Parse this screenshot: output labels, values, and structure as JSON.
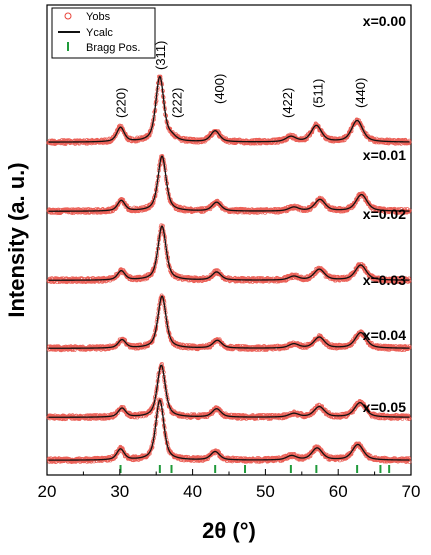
{
  "chart_data": {
    "type": "line",
    "xlabel": "2θ (°)",
    "ylabel": "Intensity (a. u.)",
    "xlim": [
      20,
      70
    ],
    "x_ticks": [
      20,
      30,
      40,
      50,
      60,
      70
    ],
    "y_ticks_shown": false,
    "grid": false,
    "legend": {
      "placement": "top-left",
      "entries": [
        {
          "name": "Yobs",
          "style": "open-circle",
          "color": "#e8443a"
        },
        {
          "name": "Ycalc",
          "style": "line",
          "color": "#111111"
        },
        {
          "name": "Bragg Pos.",
          "style": "tick",
          "color": "#1f9a3a"
        }
      ]
    },
    "peak_labels": [
      {
        "text": "(220)",
        "x": 30.1
      },
      {
        "text": "(311)",
        "x": 35.5
      },
      {
        "text": "(222)",
        "x": 37.1
      },
      {
        "text": "(400)",
        "x": 43.1
      },
      {
        "text": "(422)",
        "x": 53.5
      },
      {
        "text": "(511)",
        "x": 57.0
      },
      {
        "text": "(440)",
        "x": 62.6
      }
    ],
    "bragg_positions": [
      30.1,
      35.5,
      37.1,
      43.1,
      47.2,
      53.5,
      57.0,
      62.6,
      65.8,
      67.0
    ],
    "series": [
      {
        "name": "x=0.00",
        "peaks": [
          [
            30.1,
            0.22
          ],
          [
            35.5,
            1.0
          ],
          [
            37.1,
            0.06
          ],
          [
            43.1,
            0.17
          ],
          [
            53.5,
            0.08
          ],
          [
            57.0,
            0.25
          ],
          [
            62.6,
            0.33
          ]
        ]
      },
      {
        "name": "x=0.01",
        "peaks": [
          [
            30.2,
            0.19
          ],
          [
            35.8,
            1.0
          ],
          [
            43.3,
            0.16
          ],
          [
            53.9,
            0.07
          ],
          [
            57.5,
            0.21
          ],
          [
            63.2,
            0.3
          ]
        ]
      },
      {
        "name": "x=0.02",
        "peaks": [
          [
            30.2,
            0.17
          ],
          [
            35.8,
            1.0
          ],
          [
            43.3,
            0.15
          ],
          [
            53.9,
            0.07
          ],
          [
            57.4,
            0.2
          ],
          [
            63.1,
            0.28
          ]
        ]
      },
      {
        "name": "x=0.03",
        "peaks": [
          [
            30.3,
            0.16
          ],
          [
            35.8,
            1.0
          ],
          [
            43.4,
            0.15
          ],
          [
            53.9,
            0.08
          ],
          [
            57.4,
            0.21
          ],
          [
            63.1,
            0.3
          ]
        ]
      },
      {
        "name": "x=0.04",
        "peaks": [
          [
            30.3,
            0.17
          ],
          [
            35.7,
            1.0
          ],
          [
            43.3,
            0.16
          ],
          [
            53.9,
            0.07
          ],
          [
            57.4,
            0.2
          ],
          [
            63.0,
            0.28
          ]
        ]
      },
      {
        "name": "x=0.05",
        "peaks": [
          [
            30.1,
            0.18
          ],
          [
            35.5,
            1.0
          ],
          [
            43.1,
            0.14
          ],
          [
            53.6,
            0.07
          ],
          [
            57.1,
            0.2
          ],
          [
            62.7,
            0.26
          ]
        ]
      }
    ]
  }
}
